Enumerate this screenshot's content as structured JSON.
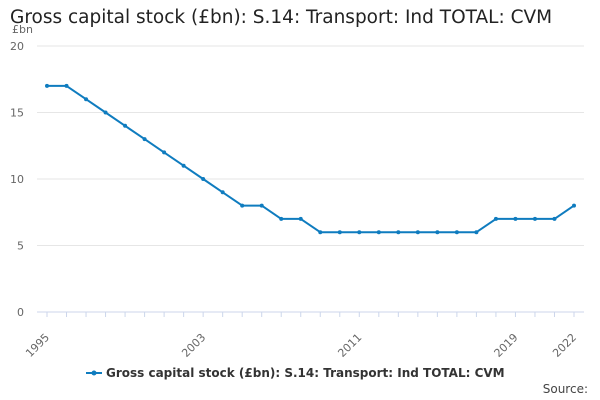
{
  "chart_data": {
    "type": "line",
    "title": "Gross capital stock (£bn): S.14: Transport: Ind TOTAL: CVM",
    "y_unit": "£bn",
    "xlabel": "",
    "ylabel": "",
    "x_ticks": [
      1995,
      2003,
      2011,
      2019,
      2022
    ],
    "y_ticks": [
      0,
      5,
      10,
      15,
      20
    ],
    "xlim": [
      1995,
      2022
    ],
    "ylim": [
      0,
      20
    ],
    "grid": true,
    "legend_position": "bottom",
    "series": [
      {
        "name": "Gross capital stock (£bn): S.14: Transport: Ind TOTAL: CVM",
        "color": "#0f7cbf",
        "x": [
          1995,
          1996,
          1997,
          1998,
          1999,
          2000,
          2001,
          2002,
          2003,
          2004,
          2005,
          2006,
          2007,
          2008,
          2009,
          2010,
          2011,
          2012,
          2013,
          2014,
          2015,
          2016,
          2017,
          2018,
          2019,
          2020,
          2021,
          2022
        ],
        "values": [
          17,
          17,
          16,
          15,
          14,
          13,
          12,
          11,
          10,
          9,
          8,
          8,
          7,
          7,
          6,
          6,
          6,
          6,
          6,
          6,
          6,
          6,
          6,
          7,
          7,
          7,
          7,
          8
        ]
      }
    ]
  },
  "footer": {
    "source_label": "Source:"
  }
}
